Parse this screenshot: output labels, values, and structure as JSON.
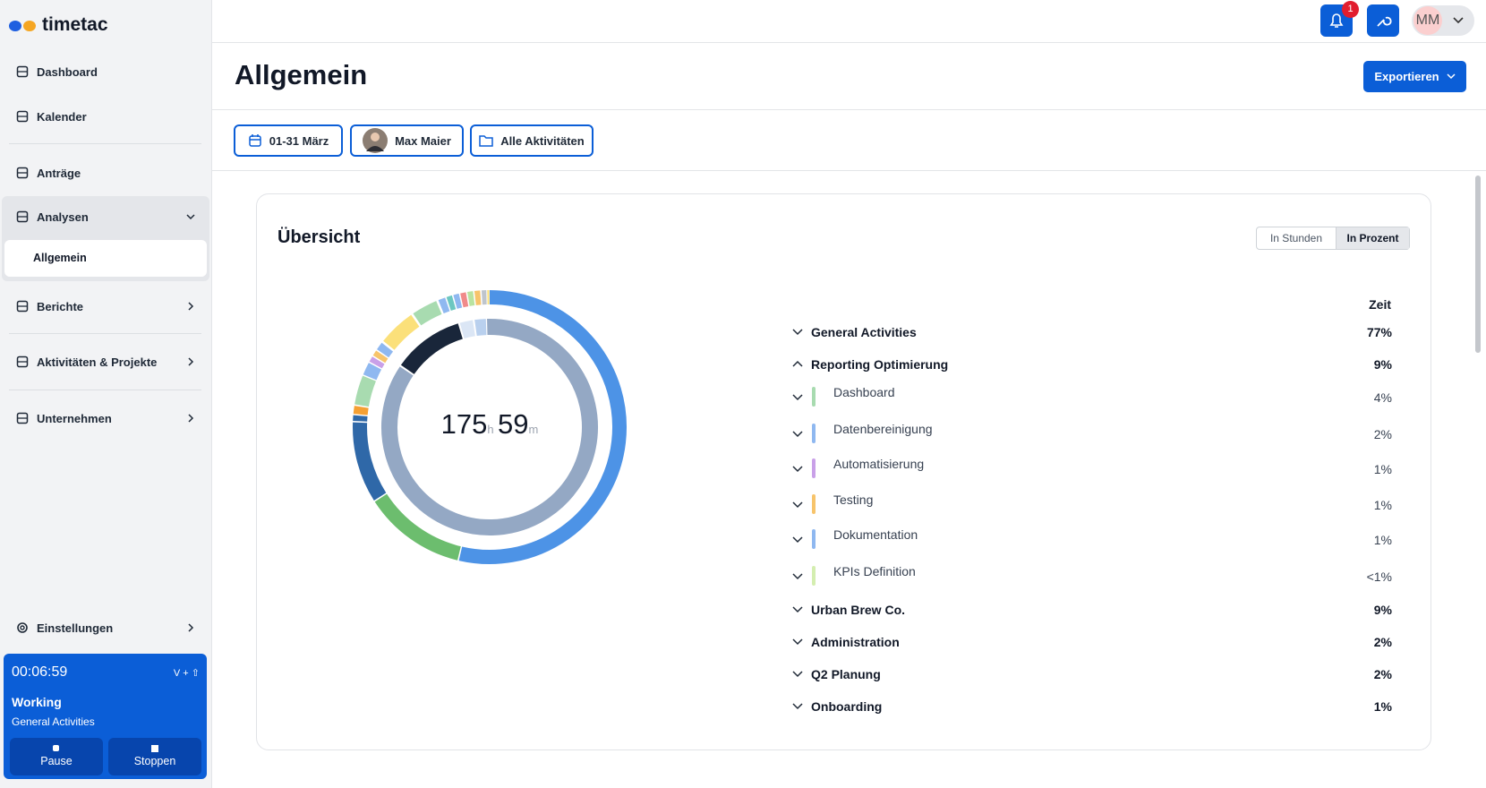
{
  "sidebar": {
    "logo": "timetac",
    "nav": [
      "Dashboard",
      "Kalender",
      "Anträge",
      "Analysen",
      "Berichte",
      "Aktivitäten & Projekte",
      "Unternehmen"
    ],
    "submenu": "Allgemein",
    "settings": "Einstellungen",
    "timer": {
      "time": "00:06:59",
      "shortcut": "V + ⇧",
      "status": "Working",
      "activity": "General Activities",
      "pause": "Pause",
      "stop": "Stoppen"
    }
  },
  "header": {
    "notifications": "1",
    "avatar": "MM"
  },
  "page": {
    "title": "Allgemein",
    "export": "Exportieren",
    "filters": [
      "01-31 März",
      "Max Maier",
      "Alle Aktivitäten"
    ]
  },
  "overview": {
    "title": "Übersicht",
    "toggle": [
      "In Stunden",
      "In Prozent"
    ],
    "total": {
      "hours": "175",
      "hours_unit": "h",
      "minutes": "59",
      "minutes_unit": "m"
    },
    "column": "Zeit",
    "rows": [
      {
        "name": "General Activities",
        "value": "77%"
      },
      {
        "name": "Reporting Optimierung",
        "value": "9%"
      },
      {
        "name": "Dashboard",
        "value": "4%",
        "color": "#a8dbb0"
      },
      {
        "name": "Datenbereinigung",
        "value": "2%",
        "color": "#8fb8f0"
      },
      {
        "name": "Automatisierung",
        "value": "1%",
        "color": "#c9a0e8"
      },
      {
        "name": "Testing",
        "value": "1%",
        "color": "#f7c46b"
      },
      {
        "name": "Dokumentation",
        "value": "1%",
        "color": "#8fb8f0"
      },
      {
        "name": "KPIs Definition",
        "value": "<1%",
        "color": "#d4eeb0"
      },
      {
        "name": "Urban Brew Co.",
        "value": "9%"
      },
      {
        "name": "Administration",
        "value": "2%"
      },
      {
        "name": "Q2 Planung",
        "value": "2%"
      },
      {
        "name": "Onboarding",
        "value": "1%"
      }
    ]
  }
}
